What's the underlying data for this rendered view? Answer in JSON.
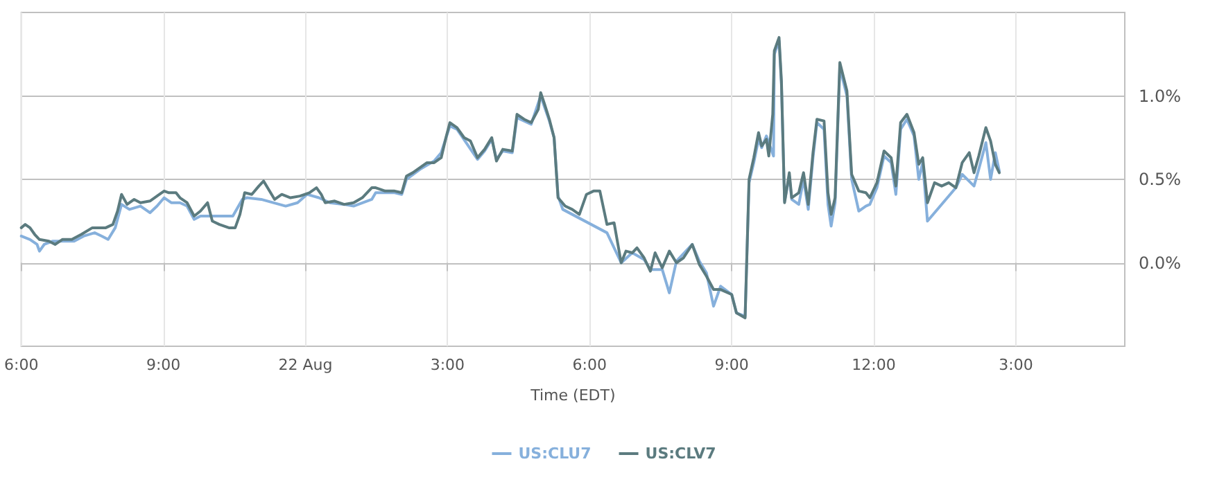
{
  "chart_data": {
    "type": "line",
    "xlabel": "Time (EDT)",
    "xlim": [
      "--08-21T18:00",
      "--08-22T17:18"
    ],
    "xticks": [
      {
        "value": "--08-21T18:00",
        "label": "6:00"
      },
      {
        "value": "--08-21T21:00",
        "label": "9:00"
      },
      {
        "value": "--08-22T00:00",
        "label": "22 Aug"
      },
      {
        "value": "--08-22T03:00",
        "label": "3:00"
      },
      {
        "value": "--08-22T06:00",
        "label": "6:00"
      },
      {
        "value": "--08-22T09:00",
        "label": "9:00"
      },
      {
        "value": "--08-22T12:00",
        "label": "12:00"
      },
      {
        "value": "--08-22T15:00",
        "label": "3:00"
      }
    ],
    "ylim": [
      -0.5,
      1.5
    ],
    "yticks": [
      {
        "value": 0,
        "label": "0.0%"
      },
      {
        "value": 0.5,
        "label": "0.5%"
      },
      {
        "value": 1,
        "label": "1.0%"
      }
    ],
    "grid": true,
    "legend": "bottom",
    "marker": "none",
    "line_style": "solid",
    "series": [
      {
        "name": "US:CLU7",
        "color": "#86b0dc",
        "x": [
          "--08-21T18:00",
          "--08-21T18:11",
          "--08-21T18:20",
          "--08-21T18:23",
          "--08-21T18:29",
          "--08-21T18:40",
          "--08-21T18:52",
          "--08-21T19:07",
          "--08-21T19:19",
          "--08-21T19:33",
          "--08-21T19:42",
          "--08-21T19:50",
          "--08-21T19:59",
          "--08-21T20:07",
          "--08-21T20:17",
          "--08-21T20:31",
          "--08-21T20:43",
          "--08-21T20:52",
          "--08-21T21:01",
          "--08-21T21:10",
          "--08-21T21:21",
          "--08-21T21:30",
          "--08-21T21:39",
          "--08-21T21:47",
          "--08-21T22:28",
          "--08-21T22:40",
          "--08-21T22:46",
          "--08-21T23:04",
          "--08-21T23:35",
          "--08-21T23:50",
          "--08-22T00:02",
          "--08-22T00:17",
          "--08-22T00:31",
          "--08-22T00:49",
          "--08-22T01:01",
          "--08-22T01:24",
          "--08-22T01:29",
          "--08-22T01:53",
          "--08-22T02:02",
          "--08-22T02:08",
          "--08-22T02:25",
          "--08-22T02:43",
          "--08-22T02:52",
          "--08-22T03:03",
          "--08-22T03:12",
          "--08-22T03:38",
          "--08-22T03:47",
          "--08-22T03:56",
          "--08-22T04:02",
          "--08-22T04:10",
          "--08-22T04:22",
          "--08-22T04:28",
          "--08-22T04:46",
          "--08-22T04:58",
          "--08-22T05:09",
          "--08-22T05:15",
          "--08-22T05:20",
          "--08-22T05:26",
          "--08-22T06:22",
          "--08-22T06:40",
          "--08-22T06:54",
          "--08-22T07:09",
          "--08-22T07:17",
          "--08-22T07:32",
          "--08-22T07:41",
          "--08-22T07:50",
          "--08-22T08:10",
          "--08-22T08:19",
          "--08-22T08:28",
          "--08-22T08:37",
          "--08-22T08:46",
          "--08-22T09:00",
          "--08-22T09:06",
          "--08-22T09:17",
          "--08-22T09:22",
          "--08-22T09:28",
          "--08-22T09:34",
          "--08-22T09:38",
          "--08-22T09:44",
          "--08-22T09:53",
          "--08-22T09:54",
          "--08-22T10:00",
          "--08-22T10:03",
          "--08-22T10:07",
          "--08-22T10:13",
          "--08-22T10:16",
          "--08-22T10:25",
          "--08-22T10:31",
          "--08-22T10:37",
          "--08-22T10:43",
          "--08-22T10:48",
          "--08-22T10:57",
          "--08-22T11:02",
          "--08-22T11:06",
          "--08-22T11:11",
          "--08-22T11:17",
          "--08-22T11:26",
          "--08-22T11:32",
          "--08-22T11:41",
          "--08-22T11:50",
          "--08-22T11:55",
          "--08-22T12:04",
          "--08-22T12:13",
          "--08-22T12:22",
          "--08-22T12:28",
          "--08-22T12:34",
          "--08-22T12:42",
          "--08-22T12:51",
          "--08-22T12:57",
          "--08-22T13:02",
          "--08-22T13:08",
          "--08-22T13:44",
          "--08-22T13:52",
          "--08-22T14:07",
          "--08-22T14:13",
          "--08-22T14:22",
          "--08-22T14:28",
          "--08-22T14:34",
          "--08-22T14:39"
        ],
        "values": [
          0.16,
          0.14,
          0.11,
          0.07,
          0.11,
          0.13,
          0.13,
          0.13,
          0.16,
          0.18,
          0.16,
          0.14,
          0.21,
          0.35,
          0.32,
          0.34,
          0.3,
          0.34,
          0.39,
          0.36,
          0.36,
          0.34,
          0.26,
          0.28,
          0.28,
          0.38,
          0.39,
          0.38,
          0.34,
          0.36,
          0.41,
          0.39,
          0.36,
          0.35,
          0.34,
          0.38,
          0.42,
          0.42,
          0.41,
          0.5,
          0.56,
          0.61,
          0.66,
          0.82,
          0.8,
          0.62,
          0.67,
          0.74,
          0.62,
          0.67,
          0.66,
          0.87,
          0.83,
          1.0,
          0.85,
          0.75,
          0.4,
          0.32,
          0.18,
          0.0,
          0.06,
          0.02,
          -0.04,
          -0.04,
          -0.18,
          0.01,
          0.11,
          0.01,
          -0.06,
          -0.26,
          -0.14,
          -0.19,
          -0.3,
          -0.32,
          0.48,
          0.6,
          0.74,
          0.69,
          0.76,
          0.64,
          1.25,
          1.33,
          1.07,
          0.37,
          0.52,
          0.38,
          0.35,
          0.5,
          0.32,
          0.63,
          0.84,
          0.8,
          0.35,
          0.22,
          0.36,
          1.17,
          1.0,
          0.5,
          0.31,
          0.34,
          0.35,
          0.45,
          0.64,
          0.6,
          0.41,
          0.8,
          0.86,
          0.76,
          0.5,
          0.6,
          0.25,
          0.45,
          0.53,
          0.46,
          0.56,
          0.72,
          0.5,
          0.66,
          0.55
        ]
      },
      {
        "name": "US:CLV7",
        "color": "#5b7b7f",
        "x": [
          "--08-21T18:00",
          "--08-21T18:05",
          "--08-21T18:11",
          "--08-21T18:17",
          "--08-21T18:23",
          "--08-21T18:35",
          "--08-21T18:43",
          "--08-21T18:52",
          "--08-21T19:04",
          "--08-21T19:16",
          "--08-21T19:30",
          "--08-21T19:39",
          "--08-21T19:47",
          "--08-21T19:56",
          "--08-21T20:02",
          "--08-21T20:07",
          "--08-21T20:14",
          "--08-21T20:23",
          "--08-21T20:31",
          "--08-21T20:43",
          "--08-21T20:55",
          "--08-21T21:01",
          "--08-21T21:07",
          "--08-21T21:16",
          "--08-21T21:21",
          "--08-21T21:30",
          "--08-21T21:39",
          "--08-21T21:47",
          "--08-21T21:56",
          "--08-21T22:02",
          "--08-21T22:11",
          "--08-21T22:23",
          "--08-21T22:31",
          "--08-21T22:37",
          "--08-21T22:43",
          "--08-21T22:52",
          "--08-21T23:01",
          "--08-21T23:07",
          "--08-21T23:12",
          "--08-21T23:21",
          "--08-21T23:30",
          "--08-21T23:41",
          "--08-21T23:53",
          "--08-22T00:05",
          "--08-22T00:14",
          "--08-22T00:20",
          "--08-22T00:25",
          "--08-22T00:37",
          "--08-22T00:49",
          "--08-22T01:01",
          "--08-22T01:12",
          "--08-22T01:24",
          "--08-22T01:29",
          "--08-22T01:41",
          "--08-22T01:53",
          "--08-22T02:02",
          "--08-22T02:08",
          "--08-22T02:16",
          "--08-22T02:25",
          "--08-22T02:34",
          "--08-22T02:43",
          "--08-22T02:52",
          "--08-22T02:58",
          "--08-22T03:03",
          "--08-22T03:12",
          "--08-22T03:21",
          "--08-22T03:29",
          "--08-22T03:38",
          "--08-22T03:47",
          "--08-22T03:56",
          "--08-22T04:02",
          "--08-22T04:10",
          "--08-22T04:22",
          "--08-22T04:28",
          "--08-22T04:37",
          "--08-22T04:46",
          "--08-22T04:55",
          "--08-22T04:58",
          "--08-22T05:03",
          "--08-22T05:09",
          "--08-22T05:15",
          "--08-22T05:20",
          "--08-22T05:29",
          "--08-22T05:38",
          "--08-22T05:47",
          "--08-22T05:56",
          "--08-22T06:05",
          "--08-22T06:13",
          "--08-22T06:22",
          "--08-22T06:31",
          "--08-22T06:40",
          "--08-22T06:46",
          "--08-22T06:54",
          "--08-22T07:00",
          "--08-22T07:09",
          "--08-22T07:17",
          "--08-22T07:23",
          "--08-22T07:32",
          "--08-22T07:41",
          "--08-22T07:50",
          "--08-22T07:59",
          "--08-22T08:10",
          "--08-22T08:19",
          "--08-22T08:28",
          "--08-22T08:37",
          "--08-22T08:46",
          "--08-22T09:00",
          "--08-22T09:06",
          "--08-22T09:17",
          "--08-22T09:22",
          "--08-22T09:28",
          "--08-22T09:34",
          "--08-22T09:38",
          "--08-22T09:44",
          "--08-22T09:47",
          "--08-22T09:52",
          "--08-22T09:54",
          "--08-22T10:00",
          "--08-22T10:03",
          "--08-22T10:07",
          "--08-22T10:13",
          "--08-22T10:16",
          "--08-22T10:25",
          "--08-22T10:31",
          "--08-22T10:37",
          "--08-22T10:43",
          "--08-22T10:48",
          "--08-22T10:57",
          "--08-22T11:02",
          "--08-22T11:06",
          "--08-22T11:11",
          "--08-22T11:17",
          "--08-22T11:26",
          "--08-22T11:32",
          "--08-22T11:41",
          "--08-22T11:50",
          "--08-22T11:55",
          "--08-22T12:04",
          "--08-22T12:13",
          "--08-22T12:22",
          "--08-22T12:28",
          "--08-22T12:34",
          "--08-22T12:42",
          "--08-22T12:51",
          "--08-22T12:57",
          "--08-22T13:02",
          "--08-22T13:08",
          "--08-22T13:17",
          "--08-22T13:26",
          "--08-22T13:35",
          "--08-22T13:44",
          "--08-22T13:52",
          "--08-22T14:01",
          "--08-22T14:07",
          "--08-22T14:13",
          "--08-22T14:22",
          "--08-22T14:28",
          "--08-22T14:34",
          "--08-22T14:39"
        ],
        "values": [
          0.21,
          0.23,
          0.21,
          0.17,
          0.14,
          0.13,
          0.11,
          0.14,
          0.14,
          0.17,
          0.21,
          0.21,
          0.21,
          0.23,
          0.31,
          0.41,
          0.35,
          0.38,
          0.36,
          0.37,
          0.41,
          0.43,
          0.42,
          0.42,
          0.39,
          0.36,
          0.28,
          0.31,
          0.36,
          0.25,
          0.23,
          0.21,
          0.21,
          0.29,
          0.42,
          0.41,
          0.46,
          0.49,
          0.45,
          0.38,
          0.41,
          0.39,
          0.4,
          0.42,
          0.45,
          0.41,
          0.36,
          0.37,
          0.35,
          0.36,
          0.39,
          0.45,
          0.45,
          0.43,
          0.43,
          0.42,
          0.52,
          0.54,
          0.57,
          0.6,
          0.6,
          0.63,
          0.75,
          0.84,
          0.81,
          0.75,
          0.73,
          0.63,
          0.68,
          0.75,
          0.61,
          0.68,
          0.67,
          0.89,
          0.86,
          0.84,
          0.92,
          1.02,
          0.95,
          0.86,
          0.75,
          0.39,
          0.34,
          0.32,
          0.29,
          0.41,
          0.43,
          0.43,
          0.23,
          0.24,
          0.0,
          0.07,
          0.06,
          0.09,
          0.03,
          -0.05,
          0.06,
          -0.03,
          0.07,
          0.0,
          0.03,
          0.11,
          -0.01,
          -0.08,
          -0.16,
          -0.16,
          -0.19,
          -0.3,
          -0.33,
          0.5,
          0.63,
          0.78,
          0.7,
          0.74,
          0.64,
          0.89,
          1.27,
          1.35,
          1.09,
          0.36,
          0.54,
          0.39,
          0.42,
          0.54,
          0.35,
          0.66,
          0.86,
          0.85,
          0.42,
          0.29,
          0.39,
          1.2,
          1.03,
          0.53,
          0.43,
          0.42,
          0.39,
          0.48,
          0.67,
          0.63,
          0.46,
          0.84,
          0.89,
          0.78,
          0.59,
          0.63,
          0.36,
          0.48,
          0.46,
          0.48,
          0.45,
          0.6,
          0.66,
          0.54,
          0.64,
          0.81,
          0.73,
          0.59,
          0.54
        ]
      }
    ]
  }
}
